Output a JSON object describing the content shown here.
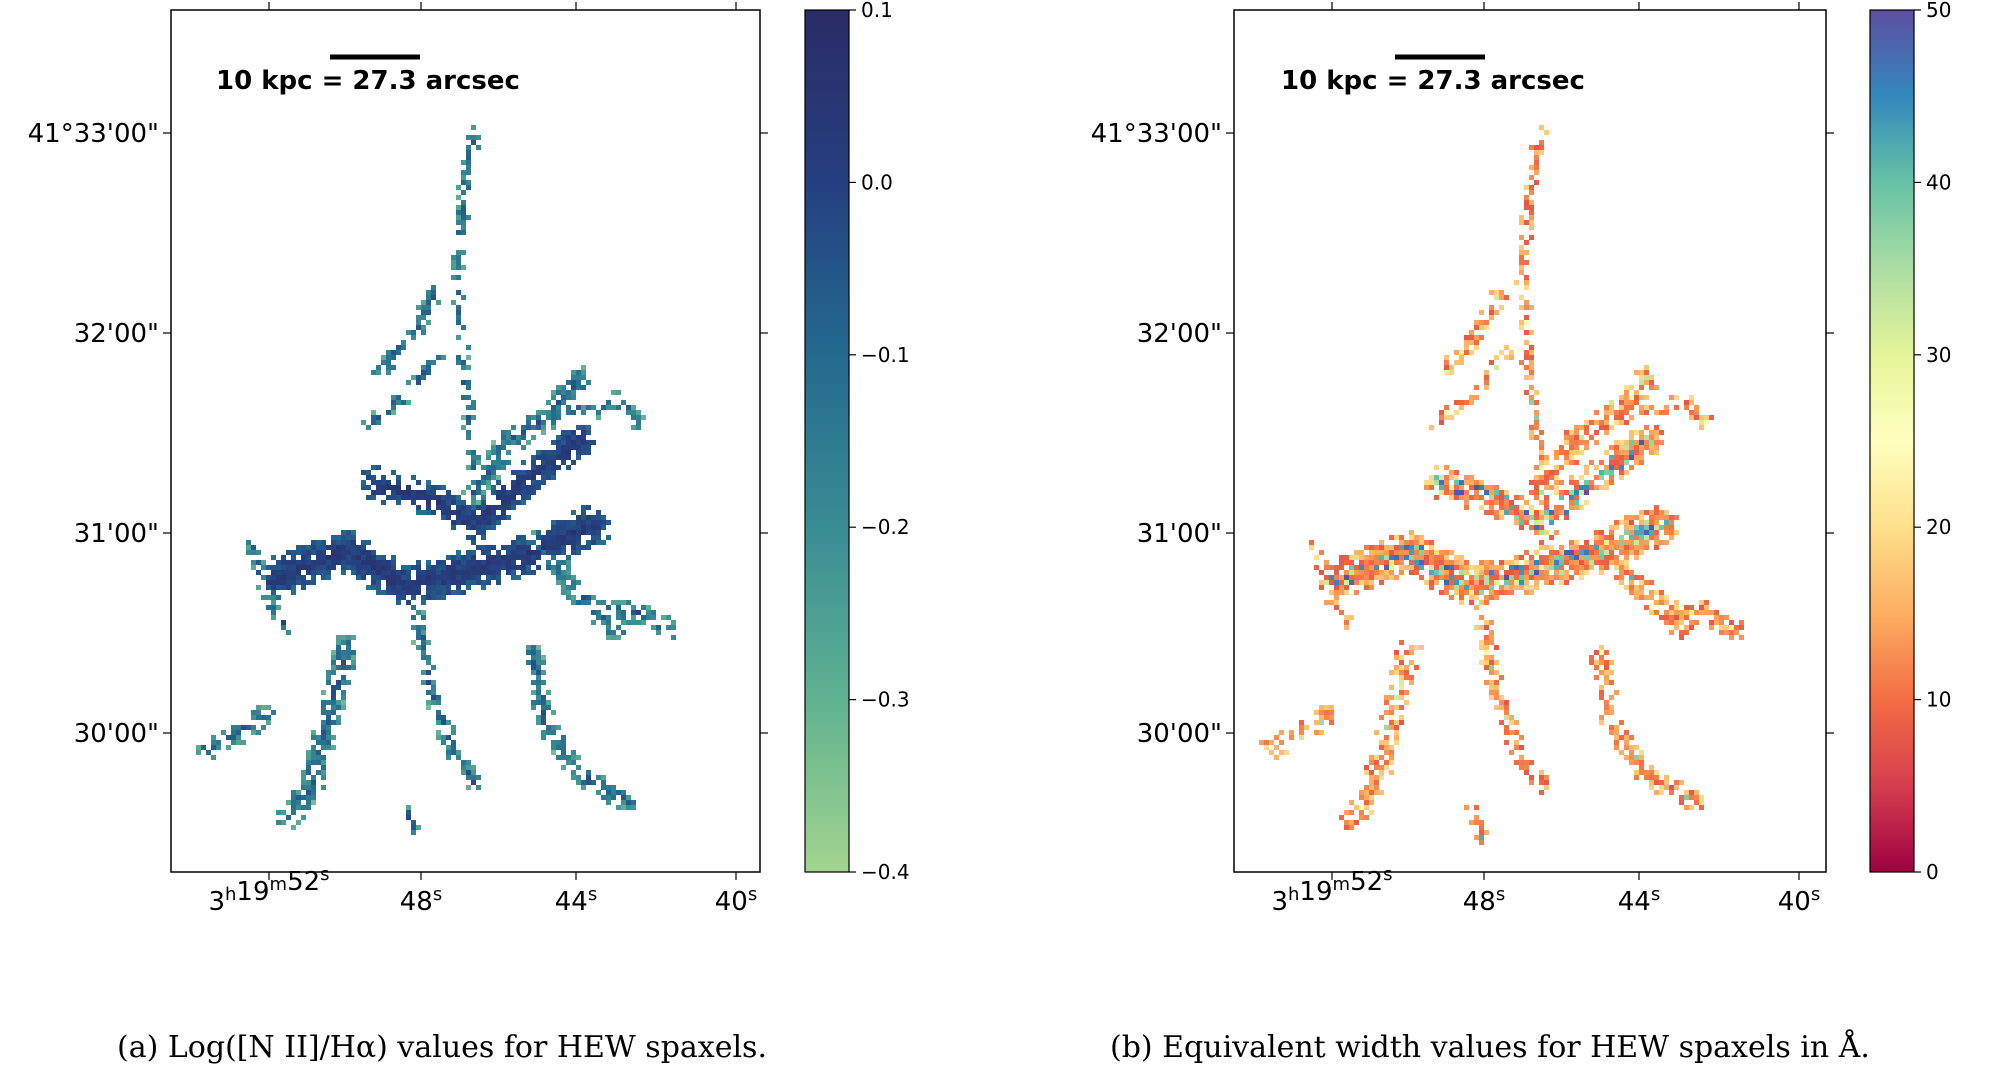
{
  "chart_data": [
    {
      "type": "heatmap",
      "panel": "a",
      "caption": "(a) Log([N II]/Hα) values for HEW spaxels.",
      "colorbar": {
        "colormap": "crest (light green to dark blue)",
        "ticks": [
          "0.1",
          "0.0",
          "−0.1",
          "−0.2",
          "−0.3",
          "−0.4"
        ],
        "tick_values": [
          0.1,
          0.0,
          -0.1,
          -0.2,
          -0.3,
          -0.4
        ],
        "range": [
          -0.4,
          0.1
        ],
        "colors": [
          "#a3d48f",
          "#5fb291",
          "#3a8c94",
          "#246a8e",
          "#253f80",
          "#2b2c66"
        ]
      },
      "scale_bar": "10 kpc = 27.3 arcsec",
      "y_ticks": [
        "41°33'00\"",
        "32'00\"",
        "31'00\"",
        "30'00\""
      ],
      "x_ticks": [
        {
          "base": "3",
          "sup1": "h",
          "mid": "19",
          "sup2": "m",
          "mid2": "52",
          "sup3": "s"
        },
        {
          "base": "48",
          "sup1": "s"
        },
        {
          "base": "44",
          "sup1": "s"
        },
        {
          "base": "40",
          "sup1": "s"
        }
      ]
    },
    {
      "type": "heatmap",
      "panel": "b",
      "caption": "(b) Equivalent width values for HEW spaxels in Å.",
      "colorbar": {
        "colormap": "Spectral",
        "ticks": [
          "50",
          "40",
          "30",
          "20",
          "10",
          "0"
        ],
        "tick_values": [
          50,
          40,
          30,
          20,
          10,
          0
        ],
        "range": [
          0,
          50
        ],
        "colors": [
          "#9e0142",
          "#d53e4f",
          "#f46d43",
          "#fdae61",
          "#fee08b",
          "#ffffbf",
          "#e6f598",
          "#abdda4",
          "#66c2a5",
          "#3288bd",
          "#5e4fa2"
        ]
      },
      "scale_bar": "10 kpc = 27.3 arcsec",
      "y_ticks": [
        "41°33'00\"",
        "32'00\"",
        "31'00\"",
        "30'00\""
      ],
      "x_ticks": [
        {
          "base": "3",
          "sup1": "h",
          "mid": "19",
          "sup2": "m",
          "mid2": "52",
          "sup3": "s"
        },
        {
          "base": "48",
          "sup1": "s"
        },
        {
          "base": "44",
          "sup1": "s"
        },
        {
          "base": "40",
          "sup1": "s"
        }
      ]
    }
  ]
}
